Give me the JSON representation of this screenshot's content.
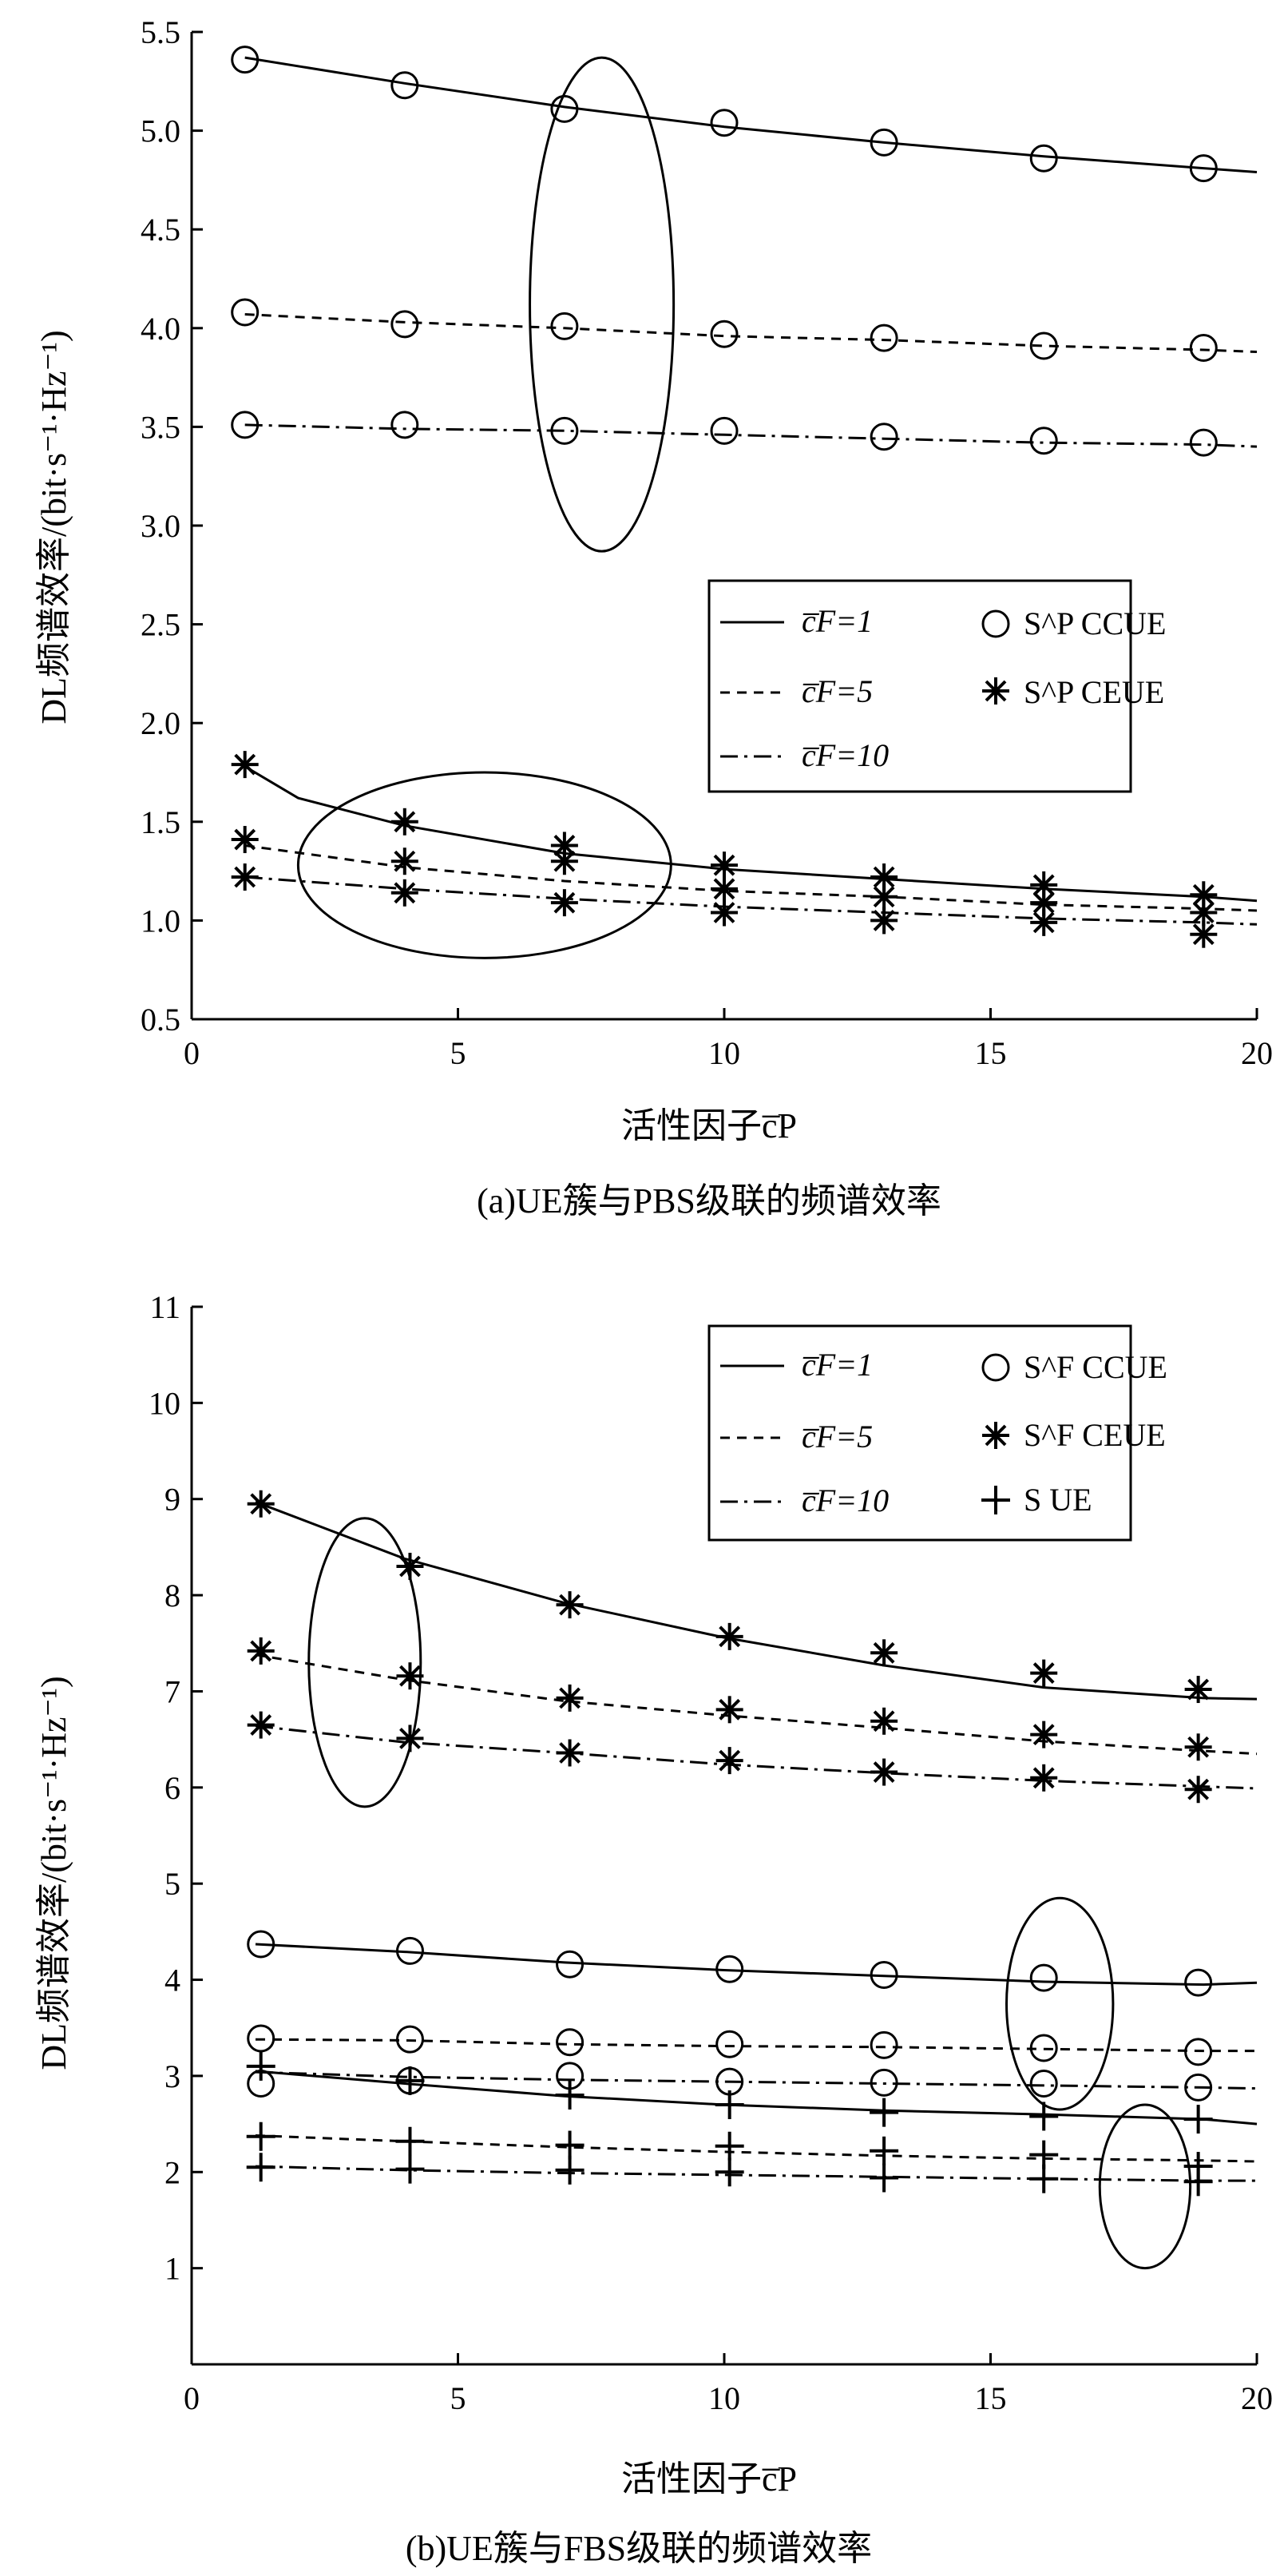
{
  "chart_data": [
    {
      "panel": "a",
      "type": "line",
      "caption": "(a)UE簇与PBS级联的频谱效率",
      "xlabel": "活性因子c̅P",
      "ylabel": "DL频谱效率/(bit·s⁻¹·Hz⁻¹)",
      "xlim": [
        0,
        20
      ],
      "ylim": [
        0.5,
        5.5
      ],
      "xticks": [
        0,
        5,
        10,
        15,
        20
      ],
      "yticks": [
        0.5,
        1.0,
        1.5,
        2.0,
        2.5,
        3.0,
        3.5,
        4.0,
        4.5,
        5.0,
        5.5
      ],
      "ytick_labels": [
        "0.5",
        "1.0",
        "1.5",
        "2.0",
        "2.5",
        "3.0",
        "3.5",
        "4.0",
        "4.5",
        "5.0",
        "5.5"
      ],
      "xtick_labels": [
        "0",
        "5",
        "10",
        "15",
        "20"
      ],
      "legend": {
        "lines": [
          {
            "style": "solid",
            "label": "c̅F=1"
          },
          {
            "style": "dashed",
            "label": "c̅F=5"
          },
          {
            "style": "dashdot",
            "label": "c̅F=10"
          }
        ],
        "markers": [
          {
            "marker": "circle",
            "label": "S^P CCUE"
          },
          {
            "marker": "asterisk",
            "label": "S^P CEUE"
          }
        ]
      },
      "lines": [
        {
          "style": "solid",
          "x": [
            1,
            2,
            4,
            7,
            10,
            13,
            16,
            19,
            20
          ],
          "y": [
            1.78,
            1.62,
            1.48,
            1.34,
            1.26,
            1.21,
            1.16,
            1.12,
            1.1
          ]
        },
        {
          "style": "dashed",
          "x": [
            1,
            4,
            7,
            10,
            13,
            16,
            19,
            20
          ],
          "y": [
            1.38,
            1.27,
            1.2,
            1.15,
            1.12,
            1.08,
            1.06,
            1.05
          ]
        },
        {
          "style": "dashdot",
          "x": [
            1,
            4,
            7,
            10,
            13,
            16,
            19,
            20
          ],
          "y": [
            1.22,
            1.16,
            1.11,
            1.07,
            1.04,
            1.01,
            0.99,
            0.98
          ]
        },
        {
          "style": "solid",
          "x": [
            1,
            4,
            7,
            10,
            13,
            16,
            19,
            20
          ],
          "y": [
            5.37,
            5.24,
            5.12,
            5.02,
            4.94,
            4.87,
            4.81,
            4.79
          ]
        },
        {
          "style": "dashed",
          "x": [
            1,
            4,
            7,
            10,
            13,
            16,
            19,
            20
          ],
          "y": [
            4.07,
            4.03,
            4.0,
            3.96,
            3.94,
            3.91,
            3.89,
            3.88
          ]
        },
        {
          "style": "dashdot",
          "x": [
            1,
            4,
            7,
            10,
            13,
            16,
            19,
            20
          ],
          "y": [
            3.51,
            3.49,
            3.48,
            3.46,
            3.44,
            3.42,
            3.41,
            3.4
          ]
        }
      ],
      "series": [
        {
          "name": "S^P CCUE",
          "marker": "circle",
          "x": [
            1,
            4,
            7,
            10,
            13,
            16,
            19
          ],
          "y": [
            5.36,
            5.23,
            5.11,
            5.04,
            4.94,
            4.86,
            4.81
          ]
        },
        {
          "name": "S^P CCUE",
          "marker": "circle",
          "x": [
            1,
            4,
            7,
            10,
            13,
            16,
            19
          ],
          "y": [
            4.08,
            4.02,
            4.01,
            3.97,
            3.95,
            3.91,
            3.9
          ]
        },
        {
          "name": "S^P CCUE",
          "marker": "circle",
          "x": [
            1,
            4,
            7,
            10,
            13,
            16,
            19
          ],
          "y": [
            3.51,
            3.51,
            3.48,
            3.48,
            3.45,
            3.43,
            3.42
          ]
        },
        {
          "name": "S^P CEUE",
          "marker": "asterisk",
          "x": [
            1,
            4,
            7,
            10,
            13,
            16,
            19
          ],
          "y": [
            1.79,
            1.5,
            1.38,
            1.28,
            1.22,
            1.18,
            1.13
          ]
        },
        {
          "name": "S^P CEUE",
          "marker": "asterisk",
          "x": [
            1,
            4,
            7,
            10,
            13,
            16,
            19
          ],
          "y": [
            1.41,
            1.3,
            1.3,
            1.16,
            1.12,
            1.09,
            1.04
          ]
        },
        {
          "name": "S^P CEUE",
          "marker": "asterisk",
          "x": [
            1,
            4,
            7,
            10,
            13,
            16,
            19
          ],
          "y": [
            1.22,
            1.14,
            1.09,
            1.04,
            1.0,
            0.99,
            0.93
          ]
        }
      ],
      "ellipses": [
        {
          "cx": 7.7,
          "cy": 4.12,
          "rx": 1.35,
          "ry": 1.25
        },
        {
          "cx": 5.5,
          "cy": 1.28,
          "rx": 3.5,
          "ry": 0.47
        }
      ]
    },
    {
      "panel": "b",
      "type": "line",
      "caption": "(b)UE簇与FBS级联的频谱效率",
      "xlabel": "活性因子c̅P",
      "ylabel": "DL频谱效率/(bit·s⁻¹·Hz⁻¹)",
      "xlim": [
        0,
        20
      ],
      "ylim": [
        0,
        11
      ],
      "xticks": [
        0,
        5,
        10,
        15,
        20
      ],
      "yticks": [
        1,
        2,
        3,
        4,
        5,
        6,
        7,
        8,
        9,
        10,
        11
      ],
      "ytick_labels": [
        "1",
        "2",
        "3",
        "4",
        "5",
        "6",
        "7",
        "8",
        "9",
        "10",
        "11"
      ],
      "xtick_labels": [
        "0",
        "5",
        "10",
        "15",
        "20"
      ],
      "legend": {
        "lines": [
          {
            "style": "solid",
            "label": "c̅F=1"
          },
          {
            "style": "dashed",
            "label": "c̅F=5"
          },
          {
            "style": "dashdot",
            "label": "c̅F=10"
          }
        ],
        "markers": [
          {
            "marker": "circle",
            "label": "S^F CCUE"
          },
          {
            "marker": "asterisk",
            "label": "S^F CEUE"
          },
          {
            "marker": "plus",
            "label": "S UE"
          }
        ]
      },
      "lines": [
        {
          "style": "solid",
          "x": [
            1.2,
            4,
            7,
            10,
            13,
            16,
            19,
            20
          ],
          "y": [
            8.97,
            8.38,
            7.92,
            7.56,
            7.27,
            7.04,
            6.93,
            6.92
          ]
        },
        {
          "style": "dashed",
          "x": [
            1.2,
            4,
            7,
            10,
            13,
            16,
            19,
            20
          ],
          "y": [
            7.38,
            7.12,
            6.9,
            6.75,
            6.62,
            6.48,
            6.38,
            6.35
          ]
        },
        {
          "style": "dashdot",
          "x": [
            1.2,
            4,
            7,
            10,
            13,
            16,
            19,
            20
          ],
          "y": [
            6.64,
            6.47,
            6.36,
            6.24,
            6.15,
            6.07,
            6.01,
            5.99
          ]
        },
        {
          "style": "solid",
          "x": [
            1.2,
            4,
            7,
            10,
            13,
            16,
            19,
            20
          ],
          "y": [
            4.37,
            4.29,
            4.18,
            4.1,
            4.04,
            3.98,
            3.95,
            3.97
          ]
        },
        {
          "style": "dashed",
          "x": [
            1.2,
            4,
            7,
            10,
            13,
            16,
            19,
            20
          ],
          "y": [
            3.38,
            3.37,
            3.33,
            3.31,
            3.3,
            3.28,
            3.26,
            3.26
          ]
        },
        {
          "style": "dashdot",
          "x": [
            1.2,
            4,
            7,
            10,
            13,
            16,
            19,
            20
          ],
          "y": [
            3.04,
            2.99,
            2.96,
            2.94,
            2.92,
            2.9,
            2.88,
            2.87
          ]
        },
        {
          "style": "solid",
          "x": [
            1.2,
            4,
            7,
            10,
            13,
            16,
            19,
            20
          ],
          "y": [
            3.05,
            2.92,
            2.79,
            2.7,
            2.64,
            2.6,
            2.55,
            2.5
          ]
        },
        {
          "style": "dashed",
          "x": [
            1.2,
            4,
            7,
            10,
            13,
            16,
            19,
            20
          ],
          "y": [
            2.38,
            2.32,
            2.26,
            2.21,
            2.17,
            2.14,
            2.12,
            2.11
          ]
        },
        {
          "style": "dashdot",
          "x": [
            1.2,
            4,
            7,
            10,
            13,
            16,
            19,
            20
          ],
          "y": [
            2.06,
            2.02,
            1.99,
            1.97,
            1.95,
            1.93,
            1.91,
            1.91
          ]
        }
      ],
      "series": [
        {
          "name": "S^F CEUE",
          "marker": "asterisk",
          "x": [
            1.3,
            4.1,
            7.1,
            10.1,
            13.0,
            16.0,
            18.9
          ],
          "y": [
            8.95,
            8.3,
            7.9,
            7.57,
            7.4,
            7.19,
            7.02
          ]
        },
        {
          "name": "S^F CEUE",
          "marker": "asterisk",
          "x": [
            1.3,
            4.1,
            7.1,
            10.1,
            13.0,
            16.0,
            18.9
          ],
          "y": [
            7.42,
            7.16,
            6.93,
            6.81,
            6.69,
            6.55,
            6.42
          ]
        },
        {
          "name": "S^F CEUE",
          "marker": "asterisk",
          "x": [
            1.3,
            4.1,
            7.1,
            10.1,
            13.0,
            16.0,
            18.9
          ],
          "y": [
            6.65,
            6.51,
            6.36,
            6.28,
            6.16,
            6.1,
            5.98
          ]
        },
        {
          "name": "S^F CCUE",
          "marker": "circle",
          "x": [
            1.3,
            4.1,
            7.1,
            10.1,
            13.0,
            16.0,
            18.9
          ],
          "y": [
            4.37,
            4.3,
            4.16,
            4.11,
            4.05,
            4.02,
            3.97
          ]
        },
        {
          "name": "S^F CCUE",
          "marker": "circle",
          "x": [
            1.3,
            4.1,
            7.1,
            10.1,
            13.0,
            16.0,
            18.9
          ],
          "y": [
            3.39,
            3.38,
            3.35,
            3.33,
            3.32,
            3.29,
            3.25
          ]
        },
        {
          "name": "S^F CCUE",
          "marker": "circle",
          "x": [
            1.3,
            4.1,
            7.1,
            10.1,
            13.0,
            16.0,
            18.9
          ],
          "y": [
            2.92,
            2.95,
            3.0,
            2.94,
            2.93,
            2.92,
            2.88
          ]
        },
        {
          "name": "S UE",
          "marker": "plus",
          "x": [
            1.3,
            4.1,
            7.1,
            10.1,
            13.0,
            16.0,
            18.9
          ],
          "y": [
            3.1,
            2.95,
            2.8,
            2.7,
            2.62,
            2.58,
            2.55
          ]
        },
        {
          "name": "S UE",
          "marker": "plus",
          "x": [
            1.3,
            4.1,
            7.1,
            10.1,
            13.0,
            16.0,
            18.9
          ],
          "y": [
            2.37,
            2.32,
            2.28,
            2.27,
            2.22,
            2.18,
            2.06
          ]
        },
        {
          "name": "S UE",
          "marker": "plus",
          "x": [
            1.3,
            4.1,
            7.1,
            10.1,
            13.0,
            16.0,
            18.9
          ],
          "y": [
            2.05,
            2.03,
            2.02,
            2.0,
            1.94,
            1.93,
            1.9
          ]
        }
      ],
      "ellipses": [
        {
          "cx": 3.25,
          "cy": 7.3,
          "rx": 1.05,
          "ry": 1.5
        },
        {
          "cx": 16.3,
          "cy": 3.75,
          "rx": 1.0,
          "ry": 1.1
        },
        {
          "cx": 17.9,
          "cy": 1.85,
          "rx": 0.85,
          "ry": 0.85
        }
      ]
    }
  ]
}
